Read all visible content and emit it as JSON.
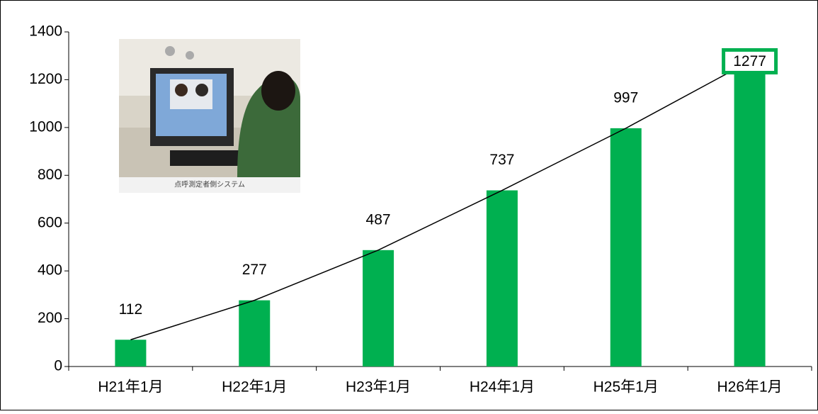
{
  "chart_data": {
    "type": "bar",
    "categories": [
      "H21年1月",
      "H22年1月",
      "H23年1月",
      "H24年1月",
      "H25年1月",
      "H26年1月"
    ],
    "values": [
      112,
      277,
      487,
      737,
      997,
      1277
    ],
    "color": "#00b050",
    "line": true,
    "highlight_last": true,
    "ylim": [
      0,
      1400
    ],
    "yticks": [
      0,
      200,
      400,
      600,
      800,
      1000,
      1200,
      1400
    ],
    "inset_caption": "点呼測定者側システム"
  }
}
